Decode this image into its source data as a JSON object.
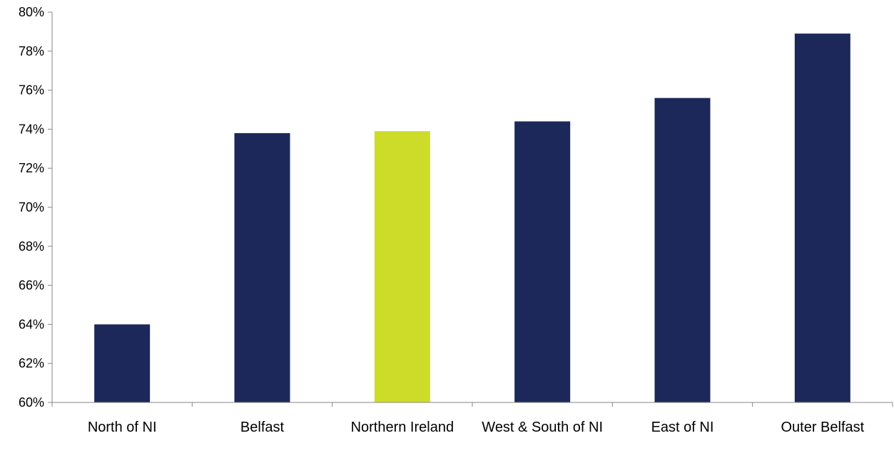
{
  "chart_data": {
    "type": "bar",
    "title": "",
    "xlabel": "",
    "ylabel": "",
    "categories": [
      "North of NI",
      "Belfast",
      "Northern Ireland",
      "West & South of NI",
      "East of NI",
      "Outer Belfast"
    ],
    "values": [
      64.0,
      73.8,
      73.9,
      74.4,
      75.6,
      78.9
    ],
    "value_unit": "%",
    "ylim": [
      60,
      80
    ],
    "yticks": [
      60,
      62,
      64,
      66,
      68,
      70,
      72,
      74,
      76,
      78,
      80
    ],
    "ytick_labels": [
      "60%",
      "62%",
      "64%",
      "66%",
      "68%",
      "70%",
      "72%",
      "74%",
      "76%",
      "78%",
      "80%"
    ],
    "grid": false,
    "legend": "none",
    "colors": {
      "default_bar": "#1c2859",
      "highlight_bar": "#cddc29",
      "axis": "#868686"
    },
    "highlight_category": "Northern Ireland"
  }
}
